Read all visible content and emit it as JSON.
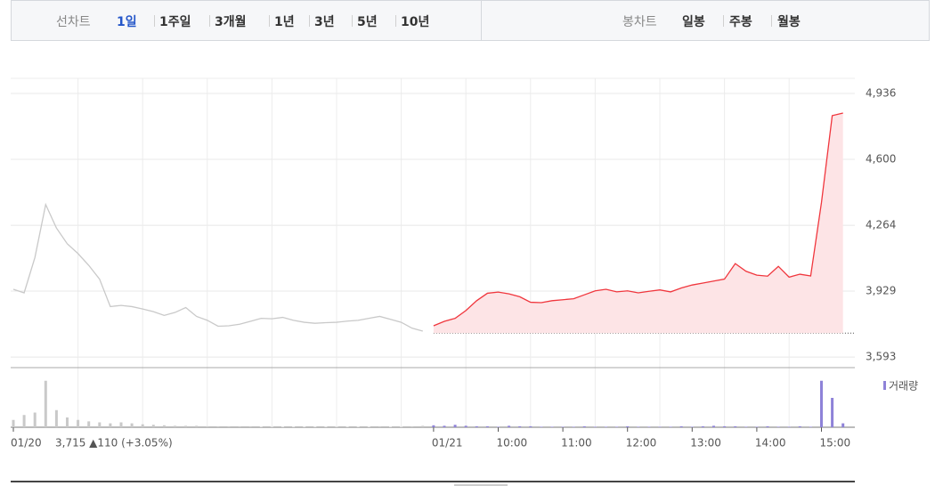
{
  "toolbar": {
    "line_chart_label": "선차트",
    "periods": [
      "1일",
      "1주일",
      "3개월",
      "1년",
      "3년",
      "5년",
      "10년"
    ],
    "candle_chart_label": "봉차트",
    "candle_periods": [
      "일봉",
      "주봉",
      "월봉"
    ]
  },
  "chart_data": {
    "type": "line",
    "categories": [
      "01/20",
      null,
      null,
      null,
      null,
      null,
      null,
      null,
      null,
      null,
      null,
      null,
      null,
      null,
      null,
      null,
      null,
      null,
      null,
      null,
      null,
      null,
      null,
      null,
      null,
      null,
      null,
      null,
      null,
      null,
      null,
      null,
      null,
      null,
      null,
      null,
      null,
      null,
      null,
      "01/21",
      null,
      null,
      null,
      null,
      null,
      "10:00",
      null,
      null,
      null,
      null,
      null,
      "11:00",
      null,
      null,
      null,
      null,
      null,
      "12:00",
      null,
      null,
      null,
      null,
      null,
      "13:00",
      null,
      null,
      null,
      null,
      null,
      "14:00",
      null,
      null,
      null,
      null,
      null,
      "15:00",
      null,
      null
    ],
    "series": [
      {
        "color": "#c9c9c9",
        "values": [
          3938,
          3920,
          4100,
          4370,
          4250,
          4170,
          4120,
          4060,
          3990,
          3850,
          3856,
          3850,
          3838,
          3824,
          3805,
          3820,
          3845,
          3800,
          3780,
          3750,
          3752,
          3760,
          3775,
          3790,
          3788,
          3795,
          3780,
          3770,
          3765,
          3768,
          3770,
          3776,
          3780,
          3790,
          3800,
          3785,
          3770,
          3740,
          3725,
          null,
          null,
          null,
          null,
          null,
          null,
          null,
          null,
          null,
          null,
          null,
          null,
          null,
          null,
          null,
          null,
          null,
          null,
          null,
          null,
          null,
          null,
          null,
          null,
          null,
          null,
          null,
          null,
          null,
          null,
          null,
          null,
          null,
          null,
          null,
          null,
          null,
          null,
          null
        ]
      },
      {
        "color": "#f0363d",
        "fill": "#fde4e6",
        "values": [
          null,
          null,
          null,
          null,
          null,
          null,
          null,
          null,
          null,
          null,
          null,
          null,
          null,
          null,
          null,
          null,
          null,
          null,
          null,
          null,
          null,
          null,
          null,
          null,
          null,
          null,
          null,
          null,
          null,
          null,
          null,
          null,
          null,
          null,
          null,
          null,
          null,
          null,
          null,
          3752,
          3775,
          3790,
          3830,
          3880,
          3918,
          3924,
          3915,
          3900,
          3872,
          3870,
          3880,
          3885,
          3890,
          3910,
          3930,
          3938,
          3925,
          3930,
          3920,
          3928,
          3935,
          3925,
          3945,
          3960,
          3970,
          3980,
          3990,
          4069,
          4030,
          4010,
          4005,
          4055,
          4000,
          4015,
          4006,
          4380,
          4823,
          4836
        ]
      }
    ],
    "reference_line": 3715,
    "ylim": [
      3539,
      5013
    ],
    "yticks": [
      {
        "value": 3593,
        "label": "3,593"
      },
      {
        "value": 3929,
        "label": "3,929"
      },
      {
        "value": 4264,
        "label": "4,264"
      },
      {
        "value": 4600,
        "label": "4,600"
      },
      {
        "value": 4936,
        "label": "4,936"
      }
    ],
    "grid": true,
    "volume": {
      "name": "거래량",
      "color": "#8e82d8",
      "ylim": [
        0,
        100
      ],
      "values": [
        15,
        25,
        30,
        95,
        35,
        20,
        15,
        12,
        10,
        8,
        10,
        8,
        6,
        5,
        4,
        3,
        3,
        3,
        2,
        2,
        2,
        2,
        2,
        1,
        1,
        1,
        1,
        1,
        1,
        1,
        1,
        1,
        1,
        1,
        2,
        1,
        1,
        2,
        3,
        4,
        3,
        5,
        3,
        2,
        2,
        1,
        3,
        2,
        2,
        1,
        1,
        1,
        1,
        2,
        1,
        1,
        1,
        2,
        1,
        1,
        1,
        1,
        2,
        1,
        2,
        3,
        2,
        2,
        1,
        1,
        2,
        1,
        1,
        2,
        1,
        95,
        60,
        8
      ]
    },
    "info_text": "3,715 ▲110 (+3.05%)"
  }
}
